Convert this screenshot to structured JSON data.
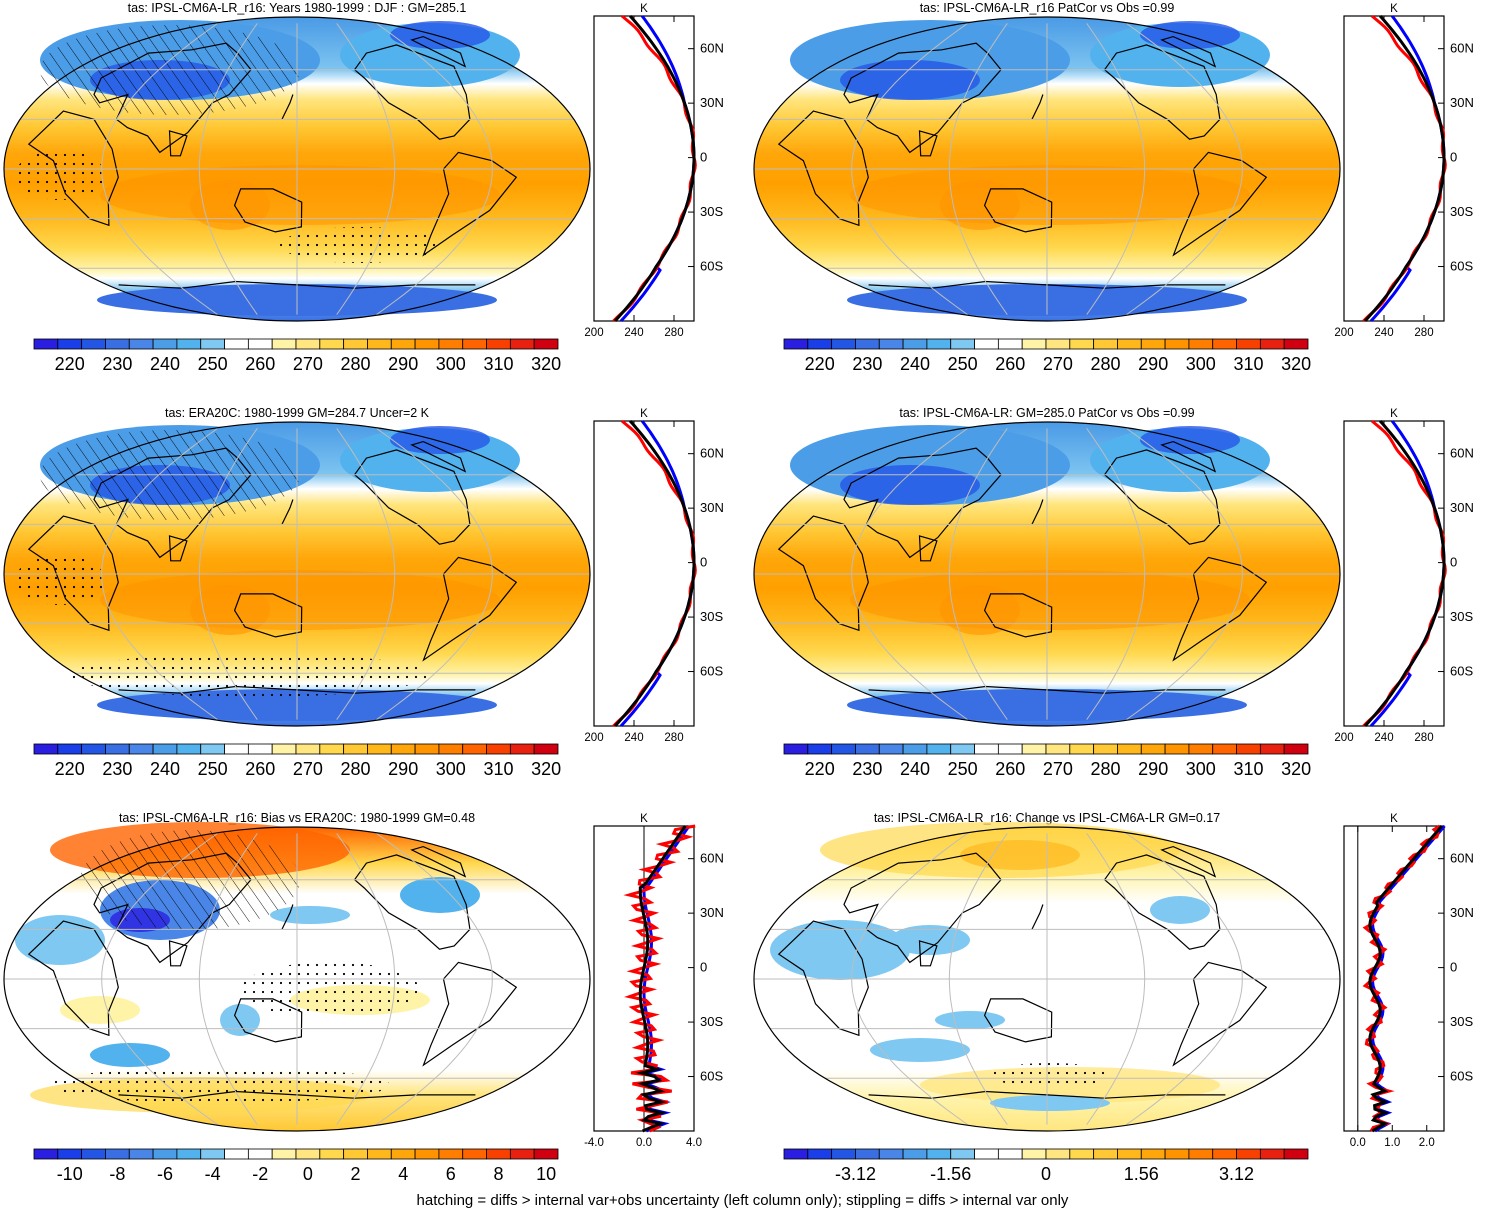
{
  "panels": [
    {
      "id": "p1",
      "title": "tas: IPSL-CM6A-LR_r16: Years 1980-1999 : DJF : GM=285.1",
      "colorbar": {
        "type": "abs"
      },
      "profile": {
        "xticks": [
          "200",
          "240",
          "280"
        ],
        "unit": "K",
        "lat_ticks": [
          "60N",
          "30N",
          "0",
          "30S",
          "60S"
        ]
      },
      "hatched": true
    },
    {
      "id": "p2",
      "title": "tas: IPSL-CM6A-LR_r16 PatCor vs Obs =0.99",
      "colorbar": {
        "type": "abs"
      },
      "profile": {
        "xticks": [
          "200",
          "240",
          "280"
        ],
        "unit": "K",
        "lat_ticks": [
          "60N",
          "30N",
          "0",
          "30S",
          "60S"
        ]
      },
      "hatched": false
    },
    {
      "id": "p3",
      "title": "tas: ERA20C: 1980-1999 GM=284.7 Uncer=2 K",
      "colorbar": {
        "type": "abs"
      },
      "profile": {
        "xticks": [
          "200",
          "240",
          "280"
        ],
        "unit": "K",
        "lat_ticks": [
          "60N",
          "30N",
          "0",
          "30S",
          "60S"
        ]
      },
      "hatched": true
    },
    {
      "id": "p4",
      "title": "tas: IPSL-CM6A-LR: GM=285.0 PatCor vs Obs =0.99",
      "colorbar": {
        "type": "abs"
      },
      "profile": {
        "xticks": [
          "200",
          "240",
          "280"
        ],
        "unit": "K",
        "lat_ticks": [
          "60N",
          "30N",
          "0",
          "30S",
          "60S"
        ]
      },
      "hatched": false
    },
    {
      "id": "p5",
      "title": "tas: IPSL-CM6A-LR_r16: Bias vs ERA20C: 1980-1999 GM=0.48",
      "colorbar": {
        "type": "bias"
      },
      "profile": {
        "xticks": [
          "-4.0",
          "0.0",
          "4.0"
        ],
        "unit": "K",
        "lat_ticks": [
          "60N",
          "30N",
          "0",
          "30S",
          "60S"
        ]
      },
      "hatched": true
    },
    {
      "id": "p6",
      "title": "tas: IPSL-CM6A-LR_r16: Change vs IPSL-CM6A-LR GM=0.17",
      "colorbar": {
        "type": "change"
      },
      "profile": {
        "xticks": [
          "0.0",
          "1.0",
          "2.0"
        ],
        "unit": "K",
        "lat_ticks": [
          "60N",
          "30N",
          "0",
          "30S",
          "60S"
        ]
      },
      "hatched": false
    }
  ],
  "colorbars": {
    "abs": {
      "labels": [
        "220",
        "230",
        "240",
        "250",
        "260",
        "270",
        "280",
        "290",
        "300",
        "310",
        "320"
      ],
      "colors": [
        "#2a1fe0",
        "#1a3ee8",
        "#2456e6",
        "#3a6fe4",
        "#4a86e8",
        "#4c9de8",
        "#52b2ee",
        "#7ec8f2",
        "#ffffff",
        "#ffffff",
        "#fff3a8",
        "#ffe680",
        "#ffd84e",
        "#ffc834",
        "#ffb81c",
        "#ffa60a",
        "#ff9400",
        "#ff7e00",
        "#ff6400",
        "#f84000",
        "#e82010",
        "#d00010"
      ]
    },
    "bias": {
      "labels": [
        "-10",
        "-8",
        "-6",
        "-4",
        "-2",
        "0",
        "2",
        "4",
        "6",
        "8",
        "10"
      ],
      "colors": [
        "#2a1fe0",
        "#1a3ee8",
        "#2456e6",
        "#3a6fe4",
        "#4a86e8",
        "#4c9de8",
        "#52b2ee",
        "#7ec8f2",
        "#ffffff",
        "#ffffff",
        "#fff3a8",
        "#ffe680",
        "#ffd84e",
        "#ffc834",
        "#ffb81c",
        "#ffa60a",
        "#ff9400",
        "#ff7e00",
        "#ff6400",
        "#f84000",
        "#e82010",
        "#d00010"
      ]
    },
    "change": {
      "labels": [
        "-3.12",
        "-1.56",
        "0",
        "1.56",
        "3.12"
      ],
      "colors": [
        "#2a1fe0",
        "#1a3ee8",
        "#2456e6",
        "#3a6fe4",
        "#4a86e8",
        "#4c9de8",
        "#52b2ee",
        "#7ec8f2",
        "#ffffff",
        "#ffffff",
        "#fff3a8",
        "#ffe680",
        "#ffd84e",
        "#ffc834",
        "#ffb81c",
        "#ffa60a",
        "#ff9400",
        "#ff7e00",
        "#ff6400",
        "#f84000",
        "#e82010",
        "#d00010"
      ]
    }
  },
  "legend_colors": {
    "model": "#ff0000",
    "obs": "#0000ff",
    "other": "#000000"
  },
  "footer": "hatching = diffs > internal var+obs uncertainty (left column only); stippling = diffs > internal var only"
}
